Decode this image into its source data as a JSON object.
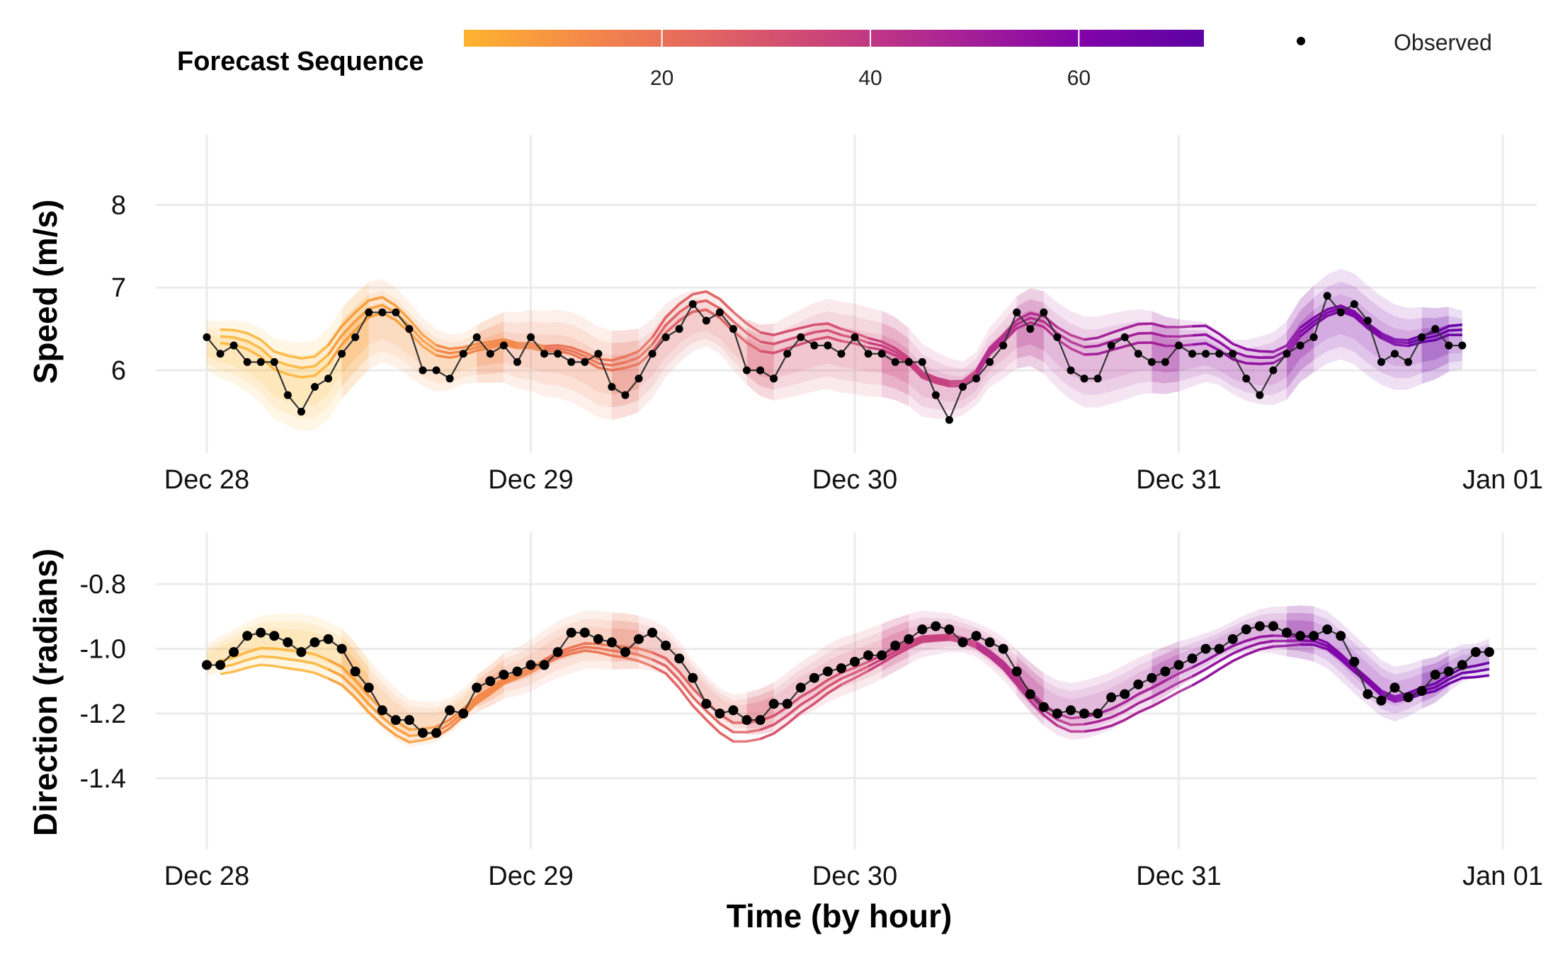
{
  "chart_data": [
    {
      "type": "line",
      "panel": "speed",
      "ylabel": "Speed (m/s)",
      "xlabel": "",
      "ylim": [
        5.0,
        8.85
      ],
      "yticks": [
        6,
        7,
        8
      ],
      "x_tick_labels": [
        "Dec 28",
        "Dec 29",
        "Dec 30",
        "Dec 31",
        "Jan 01"
      ],
      "x_unit": "hours since Dec 28 00:00",
      "x_ticks_hours": [
        0,
        24,
        48,
        72,
        96
      ],
      "observed": {
        "name": "Observed",
        "x_start_hour": 0,
        "values": [
          6.4,
          6.2,
          6.3,
          6.1,
          6.1,
          6.1,
          5.7,
          5.5,
          5.8,
          5.9,
          6.2,
          6.4,
          6.7,
          6.7,
          6.7,
          6.5,
          6.0,
          6.0,
          5.9,
          6.2,
          6.4,
          6.2,
          6.3,
          6.1,
          6.4,
          6.2,
          6.2,
          6.1,
          6.1,
          6.2,
          5.8,
          5.7,
          5.9,
          6.2,
          6.4,
          6.5,
          6.8,
          6.6,
          6.7,
          6.5,
          6.0,
          6.0,
          5.9,
          6.2,
          6.4,
          6.3,
          6.3,
          6.2,
          6.4,
          6.2,
          6.2,
          6.1,
          6.1,
          6.1,
          5.7,
          5.4,
          5.8,
          5.9,
          6.1,
          6.3,
          6.7,
          6.5,
          6.7,
          6.4,
          6.0,
          5.9,
          5.9,
          6.3,
          6.4,
          6.2,
          6.1,
          6.1,
          6.3,
          6.2,
          6.2,
          6.2,
          6.2,
          5.9,
          5.7,
          6.0,
          6.2,
          6.3,
          6.4,
          6.9,
          6.7,
          6.8,
          6.6,
          6.1,
          6.2,
          6.1,
          6.4,
          6.5,
          6.3,
          6.3
        ]
      }
    },
    {
      "type": "line",
      "panel": "direction",
      "ylabel": "Direction (radians)",
      "xlabel": "Time (by hour)",
      "ylim": [
        -1.62,
        -0.64
      ],
      "yticks": [
        -1.4,
        -1.2,
        -1.0,
        -0.8
      ],
      "ytick_labels": [
        "-1.4",
        "-1.2",
        "-1.0",
        "-0.8"
      ],
      "x_tick_labels": [
        "Dec 28",
        "Dec 29",
        "Dec 30",
        "Dec 31",
        "Jan 01"
      ],
      "x_unit": "hours since Dec 28 00:00",
      "x_ticks_hours": [
        0,
        24,
        48,
        72,
        96
      ],
      "observed": {
        "name": "Observed",
        "x_start_hour": 0,
        "values": [
          -1.05,
          -1.05,
          -1.01,
          -0.96,
          -0.95,
          -0.96,
          -0.98,
          -1.01,
          -0.98,
          -0.97,
          -1.0,
          -1.07,
          -1.12,
          -1.19,
          -1.22,
          -1.22,
          -1.26,
          -1.26,
          -1.19,
          -1.2,
          -1.12,
          -1.1,
          -1.08,
          -1.07,
          -1.05,
          -1.05,
          -1.01,
          -0.95,
          -0.95,
          -0.97,
          -0.98,
          -1.01,
          -0.97,
          -0.95,
          -0.99,
          -1.03,
          -1.09,
          -1.17,
          -1.2,
          -1.19,
          -1.22,
          -1.22,
          -1.17,
          -1.17,
          -1.12,
          -1.09,
          -1.07,
          -1.06,
          -1.04,
          -1.02,
          -1.02,
          -0.99,
          -0.97,
          -0.94,
          -0.93,
          -0.94,
          -0.98,
          -0.96,
          -0.98,
          -1.0,
          -1.07,
          -1.14,
          -1.18,
          -1.2,
          -1.19,
          -1.2,
          -1.2,
          -1.15,
          -1.14,
          -1.11,
          -1.09,
          -1.07,
          -1.05,
          -1.03,
          -1.0,
          -1.0,
          -0.97,
          -0.94,
          -0.93,
          -0.93,
          -0.95,
          -0.96,
          -0.96,
          -0.94,
          -0.96,
          -1.04,
          -1.14,
          -1.16,
          -1.12,
          -1.15,
          -1.13,
          -1.08,
          -1.07,
          -1.05,
          -1.01,
          -1.01
        ]
      }
    }
  ],
  "legend": {
    "title": "Forecast Sequence",
    "colorbar_ticks": [
      20,
      40,
      60
    ],
    "colorbar_range": [
      1,
      72
    ],
    "observed_label": "Observed",
    "palette": [
      "#fdb42f",
      "#f48849",
      "#e16462",
      "#c9417c",
      "#a82296",
      "#8104a7",
      "#5c02a3"
    ]
  }
}
